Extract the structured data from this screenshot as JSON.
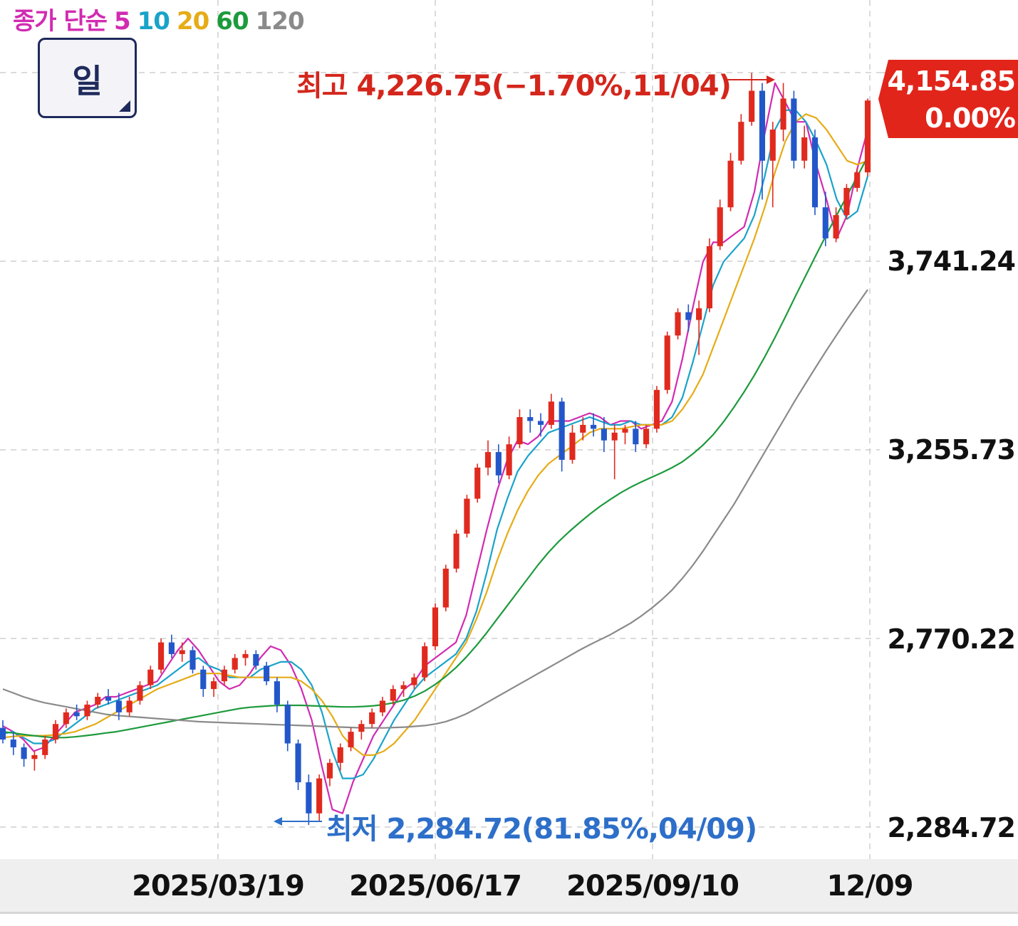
{
  "legend": {
    "prefix": "종가 단순",
    "ma": [
      {
        "label": "5",
        "color": "#d12bb2"
      },
      {
        "label": "10",
        "color": "#1aa3c9"
      },
      {
        "label": "20",
        "color": "#e6ac17"
      },
      {
        "label": "60",
        "color": "#1d9a3c"
      },
      {
        "label": "120",
        "color": "#8a8a8a"
      }
    ],
    "prefix_color": "#d12bb2"
  },
  "period_button": {
    "label": "일"
  },
  "annotations": {
    "high": {
      "text": "최고 4,226.75(−1.70%,11/04)",
      "color": "#d4261c"
    },
    "low": {
      "text": "최저 2,284.72(81.85%,04/09)",
      "color": "#2d6fc9"
    }
  },
  "current_price": {
    "value": "4,154.85",
    "change": "0.00%",
    "color": "#e1251b"
  },
  "y_axis": {
    "labels": [
      "3,741.24",
      "3,255.73",
      "2,770.22",
      "2,284.72"
    ],
    "hidden_top": "4,226.75"
  },
  "x_axis": {
    "labels": [
      "2025/03/19",
      "2025/06/17",
      "2025/09/10",
      "12/09"
    ]
  },
  "colors": {
    "up": "#e02a1e",
    "down": "#2357c9",
    "grid": "#cfcfcf"
  },
  "chart_data": {
    "type": "candlestick",
    "y_range": [
      2284.72,
      4226.75
    ],
    "y_ticks": [
      2284.72,
      2770.22,
      3255.73,
      3741.24,
      4226.75
    ],
    "x_ticks": [
      "2025/03/19",
      "2025/06/17",
      "2025/09/10",
      "12/09"
    ],
    "series": [
      {
        "name": "5",
        "values": [
          2545,
          2530,
          2510,
          2480,
          2490,
          2520,
          2550,
          2580,
          2590,
          2600,
          2620,
          2620,
          2630,
          2640,
          2650,
          2660,
          2700,
          2740,
          2770,
          2740,
          2700,
          2660,
          2640,
          2650,
          2680,
          2720,
          2750,
          2740,
          2700,
          2640,
          2560,
          2440,
          2330,
          2320,
          2400,
          2460,
          2520,
          2560,
          2600,
          2640,
          2660,
          2700,
          2720,
          2740,
          2760,
          2830,
          2940,
          3050,
          3150,
          3230,
          3280,
          3270,
          3290,
          3330,
          3330,
          3330,
          3340,
          3350,
          3340,
          3320,
          3330,
          3330,
          3310,
          3320,
          3330,
          3380,
          3490,
          3620,
          3740,
          3790,
          3790,
          3810,
          3830,
          3920,
          4070,
          4200,
          4150,
          4100,
          4100,
          3990,
          3900,
          3800,
          3860,
          3980,
          4080
        ]
      },
      {
        "name": "10",
        "values": [
          2525,
          2530,
          2515,
          2500,
          2500,
          2510,
          2530,
          2550,
          2570,
          2590,
          2600,
          2610,
          2620,
          2630,
          2640,
          2650,
          2670,
          2690,
          2710,
          2720,
          2700,
          2690,
          2670,
          2670,
          2670,
          2690,
          2700,
          2710,
          2710,
          2690,
          2650,
          2580,
          2480,
          2410,
          2410,
          2420,
          2460,
          2510,
          2560,
          2600,
          2640,
          2670,
          2690,
          2710,
          2730,
          2770,
          2840,
          2940,
          3050,
          3130,
          3200,
          3240,
          3270,
          3300,
          3310,
          3320,
          3330,
          3340,
          3330,
          3320,
          3320,
          3330,
          3320,
          3320,
          3320,
          3340,
          3390,
          3480,
          3580,
          3680,
          3740,
          3770,
          3800,
          3860,
          3960,
          4080,
          4130,
          4130,
          4100,
          4050,
          3990,
          3900,
          3850,
          3870,
          3960
        ]
      },
      {
        "name": "20",
        "values": [
          2515,
          2518,
          2520,
          2520,
          2520,
          2522,
          2525,
          2530,
          2540,
          2550,
          2565,
          2580,
          2595,
          2610,
          2625,
          2640,
          2650,
          2660,
          2670,
          2680,
          2680,
          2680,
          2675,
          2670,
          2670,
          2670,
          2670,
          2670,
          2670,
          2660,
          2640,
          2610,
          2570,
          2520,
          2490,
          2470,
          2470,
          2480,
          2500,
          2530,
          2560,
          2600,
          2640,
          2680,
          2720,
          2760,
          2820,
          2890,
          2970,
          3040,
          3100,
          3150,
          3190,
          3220,
          3240,
          3260,
          3280,
          3300,
          3310,
          3310,
          3310,
          3315,
          3320,
          3320,
          3320,
          3330,
          3360,
          3400,
          3450,
          3520,
          3590,
          3660,
          3730,
          3800,
          3880,
          3970,
          4050,
          4100,
          4120,
          4110,
          4080,
          4040,
          4000,
          3990,
          4000
        ]
      },
      {
        "name": "60",
        "values": [
          2530,
          2527,
          2523,
          2520,
          2517,
          2515,
          2515,
          2517,
          2520,
          2523,
          2527,
          2530,
          2535,
          2540,
          2545,
          2550,
          2555,
          2560,
          2565,
          2570,
          2575,
          2580,
          2585,
          2590,
          2593,
          2595,
          2597,
          2598,
          2598,
          2598,
          2597,
          2596,
          2595,
          2594,
          2594,
          2595,
          2597,
          2600,
          2605,
          2612,
          2622,
          2635,
          2652,
          2672,
          2695,
          2722,
          2752,
          2785,
          2820,
          2855,
          2890,
          2925,
          2960,
          2992,
          3020,
          3045,
          3068,
          3090,
          3110,
          3128,
          3145,
          3160,
          3173,
          3185,
          3197,
          3210,
          3225,
          3245,
          3268,
          3295,
          3328,
          3365,
          3405,
          3448,
          3495,
          3545,
          3598,
          3652,
          3705,
          3758,
          3810,
          3860,
          3910,
          3960,
          4010
        ]
      },
      {
        "name": "120",
        "values": [
          2640,
          2630,
          2620,
          2612,
          2605,
          2600,
          2595,
          2590,
          2585,
          2580,
          2575,
          2572,
          2570,
          2568,
          2566,
          2564,
          2562,
          2560,
          2558,
          2556,
          2555,
          2554,
          2553,
          2552,
          2551,
          2550,
          2549,
          2548,
          2547,
          2546,
          2545,
          2544,
          2543,
          2542,
          2541,
          2540,
          2540,
          2540,
          2541,
          2542,
          2544,
          2546,
          2550,
          2556,
          2565,
          2576,
          2590,
          2605,
          2620,
          2635,
          2650,
          2665,
          2680,
          2695,
          2710,
          2725,
          2740,
          2754,
          2767,
          2780,
          2795,
          2810,
          2828,
          2848,
          2870,
          2895,
          2925,
          2958,
          2995,
          3035,
          3075,
          3115,
          3160,
          3205,
          3250,
          3295,
          3340,
          3385,
          3428,
          3470,
          3512,
          3552,
          3592,
          3630,
          3668
        ]
      }
    ],
    "candles": [
      [
        2540,
        2560,
        2500,
        2510
      ],
      [
        2510,
        2530,
        2470,
        2490
      ],
      [
        2490,
        2500,
        2440,
        2460
      ],
      [
        2460,
        2480,
        2430,
        2470
      ],
      [
        2470,
        2520,
        2460,
        2510
      ],
      [
        2510,
        2560,
        2500,
        2550
      ],
      [
        2550,
        2590,
        2540,
        2580
      ],
      [
        2580,
        2600,
        2560,
        2570
      ],
      [
        2570,
        2610,
        2560,
        2600
      ],
      [
        2600,
        2630,
        2590,
        2620
      ],
      [
        2620,
        2640,
        2600,
        2610
      ],
      [
        2610,
        2630,
        2560,
        2580
      ],
      [
        2580,
        2620,
        2570,
        2610
      ],
      [
        2610,
        2660,
        2600,
        2650
      ],
      [
        2650,
        2700,
        2640,
        2690
      ],
      [
        2690,
        2770,
        2680,
        2760
      ],
      [
        2760,
        2780,
        2720,
        2730
      ],
      [
        2730,
        2760,
        2710,
        2740
      ],
      [
        2740,
        2750,
        2680,
        2690
      ],
      [
        2690,
        2700,
        2620,
        2640
      ],
      [
        2640,
        2670,
        2620,
        2660
      ],
      [
        2660,
        2700,
        2650,
        2690
      ],
      [
        2690,
        2730,
        2680,
        2720
      ],
      [
        2720,
        2740,
        2700,
        2730
      ],
      [
        2730,
        2740,
        2690,
        2700
      ],
      [
        2700,
        2710,
        2650,
        2660
      ],
      [
        2660,
        2670,
        2580,
        2600
      ],
      [
        2600,
        2610,
        2480,
        2500
      ],
      [
        2500,
        2510,
        2380,
        2400
      ],
      [
        2400,
        2420,
        2290,
        2320
      ],
      [
        2320,
        2420,
        2300,
        2410
      ],
      [
        2410,
        2460,
        2390,
        2450
      ],
      [
        2450,
        2500,
        2430,
        2490
      ],
      [
        2490,
        2540,
        2480,
        2530
      ],
      [
        2530,
        2560,
        2510,
        2550
      ],
      [
        2550,
        2590,
        2540,
        2580
      ],
      [
        2580,
        2620,
        2570,
        2610
      ],
      [
        2610,
        2650,
        2600,
        2640
      ],
      [
        2640,
        2660,
        2620,
        2650
      ],
      [
        2650,
        2680,
        2640,
        2670
      ],
      [
        2670,
        2760,
        2660,
        2750
      ],
      [
        2750,
        2860,
        2740,
        2850
      ],
      [
        2850,
        2960,
        2840,
        2950
      ],
      [
        2950,
        3050,
        2940,
        3040
      ],
      [
        3040,
        3140,
        3030,
        3130
      ],
      [
        3130,
        3220,
        3120,
        3210
      ],
      [
        3210,
        3280,
        3190,
        3250
      ],
      [
        3250,
        3270,
        3170,
        3190
      ],
      [
        3190,
        3290,
        3180,
        3270
      ],
      [
        3270,
        3360,
        3260,
        3340
      ],
      [
        3340,
        3360,
        3300,
        3330
      ],
      [
        3330,
        3350,
        3290,
        3320
      ],
      [
        3320,
        3400,
        3310,
        3380
      ],
      [
        3380,
        3390,
        3200,
        3230
      ],
      [
        3230,
        3320,
        3220,
        3300
      ],
      [
        3300,
        3340,
        3280,
        3320
      ],
      [
        3320,
        3350,
        3290,
        3310
      ],
      [
        3310,
        3340,
        3250,
        3280
      ],
      [
        3280,
        3320,
        3180,
        3300
      ],
      [
        3300,
        3320,
        3270,
        3310
      ],
      [
        3310,
        3330,
        3250,
        3270
      ],
      [
        3270,
        3320,
        3260,
        3310
      ],
      [
        3310,
        3420,
        3300,
        3410
      ],
      [
        3410,
        3560,
        3400,
        3550
      ],
      [
        3550,
        3620,
        3540,
        3610
      ],
      [
        3610,
        3630,
        3560,
        3590
      ],
      [
        3590,
        3640,
        3500,
        3620
      ],
      [
        3620,
        3800,
        3610,
        3780
      ],
      [
        3780,
        3900,
        3770,
        3880
      ],
      [
        3880,
        4020,
        3870,
        4000
      ],
      [
        4000,
        4120,
        3990,
        4100
      ],
      [
        4100,
        4226,
        4090,
        4180
      ],
      [
        4180,
        4200,
        3900,
        4000
      ],
      [
        4000,
        4100,
        3880,
        4080
      ],
      [
        4080,
        4200,
        4050,
        4160
      ],
      [
        4160,
        4180,
        3980,
        4000
      ],
      [
        4000,
        4090,
        3980,
        4060
      ],
      [
        4060,
        4080,
        3860,
        3880
      ],
      [
        3880,
        3920,
        3780,
        3800
      ],
      [
        3800,
        3880,
        3790,
        3860
      ],
      [
        3860,
        3940,
        3850,
        3930
      ],
      [
        3930,
        3980,
        3920,
        3970
      ],
      [
        3970,
        4160,
        3960,
        4154.85
      ]
    ],
    "high": {
      "value": 4226.75,
      "change": "-1.70%",
      "date": "11/04"
    },
    "low": {
      "value": 2284.72,
      "change": "81.85%",
      "date": "04/09"
    },
    "last": {
      "value": 4154.85,
      "change": "0.00%"
    }
  }
}
